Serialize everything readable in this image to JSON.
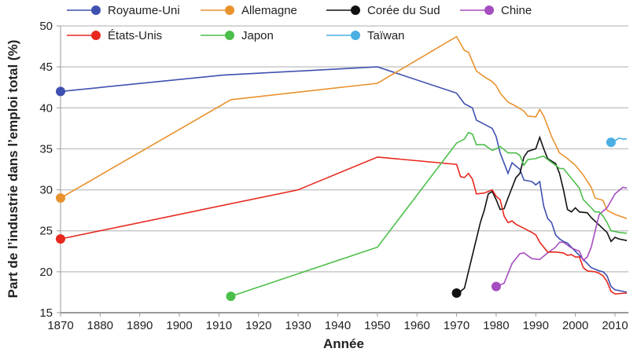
{
  "chart_data": {
    "type": "line",
    "xlabel": "Année",
    "ylabel": "Part de l’industrie dans l’emploi total (%)",
    "xlim": [
      1870,
      2013
    ],
    "ylim": [
      15,
      50
    ],
    "xticks": [
      1870,
      1880,
      1890,
      1900,
      1910,
      1920,
      1930,
      1940,
      1950,
      1960,
      1970,
      1980,
      1990,
      2000,
      2010
    ],
    "yticks": [
      15,
      20,
      25,
      30,
      35,
      40,
      45,
      50
    ],
    "grid": "horizontal",
    "legend_position": "top",
    "series": [
      {
        "name": "Royaume-Uni",
        "color": "#3f51b0",
        "x": [
          1870,
          1911,
          1950,
          1970,
          1972,
          1974,
          1975,
          1977,
          1979,
          1980,
          1981,
          1983,
          1984,
          1986,
          1987,
          1989,
          1990,
          1991,
          1992,
          1993,
          1994,
          1995,
          1996,
          1997,
          1998,
          2000,
          2002,
          2004,
          2006,
          2007,
          2008,
          2009,
          2010,
          2013
        ],
        "y": [
          42,
          44,
          45,
          41.8,
          40.5,
          40,
          38.5,
          38,
          37.5,
          36.5,
          34.5,
          32,
          33.3,
          32.5,
          31.2,
          31,
          30.6,
          31,
          28,
          26.5,
          26,
          24.5,
          24,
          23.7,
          23.5,
          22.5,
          21.5,
          20.5,
          20.1,
          20,
          19.5,
          18.2,
          17.8,
          17.5
        ]
      },
      {
        "name": "Allemagne",
        "color": "#e8922e",
        "x": [
          1870,
          1913,
          1950,
          1970,
          1972,
          1973,
          1975,
          1977,
          1979,
          1980,
          1981,
          1983,
          1985,
          1987,
          1988,
          1990,
          1991,
          1992,
          1994,
          1996,
          1998,
          2000,
          2002,
          2004,
          2005,
          2007,
          2008,
          2010,
          2013
        ],
        "y": [
          29,
          41,
          43,
          48.7,
          47,
          46.8,
          44.5,
          43.8,
          43.2,
          42.7,
          41.8,
          40.7,
          40.2,
          39.6,
          39,
          38.9,
          39.8,
          39,
          36.5,
          34.5,
          33.8,
          33,
          31.8,
          30.3,
          29,
          28.7,
          27.5,
          27,
          26.5
        ]
      },
      {
        "name": "Corée du Sud",
        "color": "#111111",
        "x": [
          1970,
          1971,
          1972,
          1974,
          1976,
          1977,
          1978,
          1979,
          1980,
          1981,
          1982,
          1983,
          1985,
          1986,
          1987,
          1988,
          1990,
          1991,
          1992,
          1993,
          1995,
          1996,
          1997,
          1998,
          1999,
          2000,
          2001,
          2003,
          2004,
          2006,
          2008,
          2009,
          2010,
          2011,
          2013
        ],
        "y": [
          17.4,
          17.6,
          18,
          22,
          26,
          27.5,
          29.5,
          29.8,
          28.8,
          27.6,
          27.7,
          29,
          31.5,
          32,
          34,
          34.7,
          35,
          36.4,
          35,
          33.8,
          33.2,
          32,
          30,
          27.6,
          27.3,
          27.8,
          27.3,
          27.2,
          26.6,
          25.7,
          24.8,
          23.7,
          24.2,
          24,
          23.8
        ]
      },
      {
        "name": "Chine",
        "color": "#a64dbf",
        "x": [
          1980,
          1982,
          1984,
          1986,
          1987,
          1989,
          1991,
          1993,
          1995,
          1996,
          1997,
          1999,
          2001,
          2002,
          2003,
          2004,
          2006,
          2008,
          2010,
          2012,
          2013
        ],
        "y": [
          18.2,
          18.6,
          21,
          22.2,
          22.3,
          21.6,
          21.5,
          22.3,
          23,
          23.6,
          23.6,
          22.9,
          22.5,
          21.4,
          21.8,
          23,
          27,
          27.8,
          29.5,
          30.3,
          30.2
        ]
      },
      {
        "name": "États-Unis",
        "color": "#e8281e",
        "x": [
          1870,
          1930,
          1950,
          1970,
          1971,
          1972,
          1973,
          1974,
          1975,
          1977,
          1979,
          1980,
          1981,
          1982,
          1983,
          1984,
          1985,
          1987,
          1989,
          1990,
          1991,
          1993,
          1995,
          1997,
          1998,
          1999,
          2000,
          2001,
          2002,
          2003,
          2005,
          2006,
          2007,
          2008,
          2009,
          2010,
          2013
        ],
        "y": [
          24,
          30,
          34,
          33.1,
          31.6,
          31.5,
          32,
          31.3,
          29.5,
          29.6,
          30,
          29.2,
          28.8,
          26.8,
          26,
          26.2,
          25.8,
          25.3,
          24.8,
          24.5,
          23.6,
          22.4,
          22.4,
          22.3,
          22,
          22.1,
          21.8,
          21.8,
          20.5,
          20.1,
          20,
          19.8,
          19.5,
          18.8,
          17.6,
          17.3,
          17.4
        ]
      },
      {
        "name": "Japon",
        "color": "#4cbf4a",
        "x": [
          1913,
          1950,
          1970,
          1972,
          1973,
          1974,
          1975,
          1977,
          1979,
          1980,
          1981,
          1983,
          1985,
          1986,
          1987,
          1988,
          1990,
          1991,
          1992,
          1993,
          1995,
          1996,
          1997,
          1999,
          2001,
          2002,
          2004,
          2005,
          2006,
          2007,
          2008,
          2009,
          2011,
          2013
        ],
        "y": [
          17,
          23,
          35.7,
          36.2,
          37,
          36.8,
          35.5,
          35.5,
          34.8,
          35,
          35.3,
          34.5,
          34.5,
          34.2,
          33,
          33.7,
          33.8,
          34,
          34.1,
          33.7,
          33,
          32.6,
          32.6,
          31.4,
          30.2,
          28.8,
          27.8,
          27.3,
          27.3,
          26.8,
          26,
          25,
          24.8,
          24.7
        ]
      },
      {
        "name": "Taïwan",
        "color": "#4aaee3",
        "x": [
          2009,
          2010,
          2011,
          2012,
          2013
        ],
        "y": [
          35.8,
          36,
          36.3,
          36.2,
          36.2
        ]
      }
    ]
  }
}
